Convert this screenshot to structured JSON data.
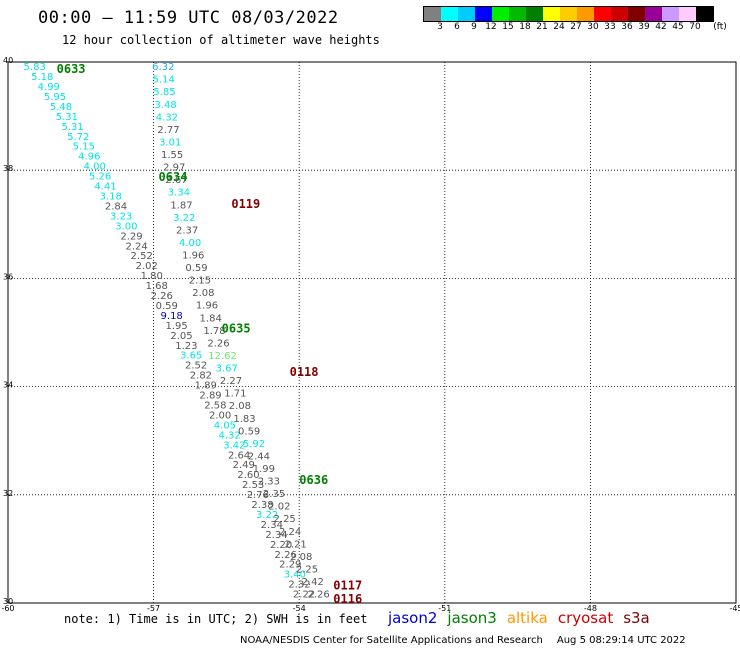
{
  "header": {
    "title": "00:00 – 11:59 UTC 08/03/2022",
    "subtitle": "12 hour collection of altimeter wave heights"
  },
  "colorbar": {
    "colors": [
      "#808080",
      "#00ffff",
      "#00ccff",
      "#0000ff",
      "#00ee00",
      "#00bb00",
      "#008000",
      "#ffff00",
      "#ffcc00",
      "#ff9900",
      "#ff0000",
      "#cc0000",
      "#800000",
      "#990099",
      "#cc99ff",
      "#ffccff",
      "#000000"
    ],
    "labels": [
      "3",
      "6",
      "9",
      "12",
      "15",
      "18",
      "21",
      "24",
      "27",
      "30",
      "33",
      "36",
      "39",
      "42",
      "45",
      "70"
    ],
    "unit": "(ft)"
  },
  "map": {
    "lon_range": [
      -60,
      -45
    ],
    "lat_range": [
      30,
      40
    ],
    "x_ticks": [
      "-60",
      "-57",
      "-54",
      "-51",
      "-48",
      "-45"
    ],
    "y_ticks": [
      "30",
      "32",
      "34",
      "36",
      "38",
      "40"
    ],
    "grid": true,
    "grid_style": "dotted"
  },
  "pass_labels": [
    {
      "text": "0633",
      "color": "#008000"
    },
    {
      "text": "0634",
      "color": "#008000"
    },
    {
      "text": "0635",
      "color": "#008000"
    },
    {
      "text": "0636",
      "color": "#008000"
    },
    {
      "text": "0119",
      "color": "#800000"
    },
    {
      "text": "0118",
      "color": "#800000"
    },
    {
      "text": "0117",
      "color": "#800000"
    },
    {
      "text": "0116",
      "color": "#800000"
    }
  ],
  "wave_heights": {
    "track_a": [
      "5.83",
      "5.18",
      "4.99",
      "5.95",
      "5.48",
      "5.31",
      "5.31",
      "5.72",
      "5.15",
      "4.96",
      "4.00",
      "5.26",
      "4.41",
      "3.18",
      "2.84",
      "3.23",
      "3.00",
      "2.29",
      "2.24",
      "2.52",
      "2.02",
      "1.80",
      "1.68",
      "2.26",
      "0.59",
      "9.18",
      "1.95",
      "2.05",
      "1.23",
      "3.65",
      "2.52",
      "2.82",
      "1.89",
      "2.89",
      "2.58",
      "2.00",
      "4.05",
      "4.32",
      "3.42",
      "2.64",
      "2.49",
      "2.60",
      "2.53",
      "2.76",
      "2.38",
      "3.22",
      "2.34",
      "2.34",
      "2.20",
      "2.26",
      "2.29",
      "3.40",
      "2.32",
      "2.22"
    ],
    "track_b": [
      "6.32",
      "5.14",
      "5.85",
      "3.48",
      "4.32",
      "2.77",
      "3.01",
      "1.55",
      "2.97",
      "2.67",
      "3.34",
      "1.87",
      "3.22",
      "2.37",
      "4.00",
      "1.96",
      "0.59",
      "2.15",
      "2.08",
      "1.96",
      "1.84",
      "1.78",
      "2.26",
      "12.62",
      "3.67",
      "2.27",
      "1.71",
      "2.08",
      "1.83",
      "0.59",
      "5.92",
      "2.44",
      "1.99",
      "2.33",
      "2.35",
      "2.02",
      "2.25",
      "2.24",
      "2.21",
      "2.08",
      "2.25",
      "2.42",
      "2.26"
    ]
  },
  "note": "note: 1) Time is in UTC; 2) SWH is in feet",
  "legend": [
    {
      "label": "jason2",
      "color": "#0000cc"
    },
    {
      "label": "jason3",
      "color": "#008000"
    },
    {
      "label": "altika",
      "color": "#ff9900"
    },
    {
      "label": "cryosat",
      "color": "#cc0000"
    },
    {
      "label": "s3a",
      "color": "#800000"
    }
  ],
  "footer": {
    "credit": "NOAA/NESDIS Center for Satellite Applications and Research",
    "timestamp": "Aug  5 08:29:14 UTC 2022"
  }
}
